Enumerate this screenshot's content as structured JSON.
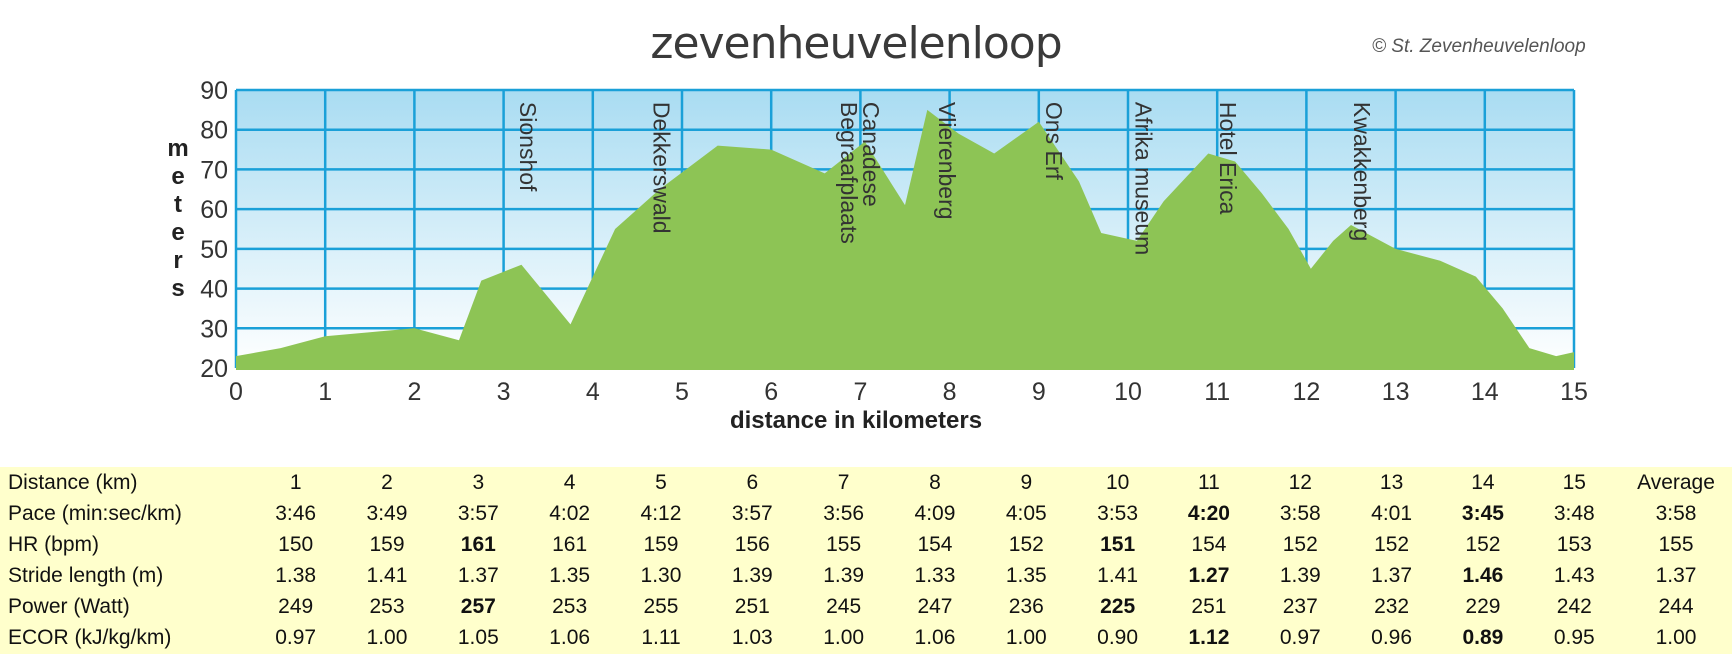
{
  "header": {
    "title": "zevenheuvelenloop",
    "copyright": "© St. Zevenheuvelenloop"
  },
  "chart_data": {
    "type": "area",
    "xlabel": "distance in kilometers",
    "ylabel": "meters",
    "xlim": [
      0,
      15
    ],
    "ylim": [
      20,
      90
    ],
    "x_ticks": [
      0,
      1,
      2,
      3,
      4,
      5,
      6,
      7,
      8,
      9,
      10,
      11,
      12,
      13,
      14,
      15
    ],
    "y_ticks": [
      20,
      30,
      40,
      50,
      60,
      70,
      80,
      90
    ],
    "grid": true,
    "fill_color": "#8dc455",
    "grid_color": "#1aa0d8",
    "profile": {
      "x": [
        0,
        0.5,
        1,
        1.5,
        2,
        2.5,
        2.75,
        3.2,
        3.75,
        4.25,
        4.75,
        5.4,
        6,
        6.6,
        7.05,
        7.5,
        7.75,
        8.1,
        8.5,
        9,
        9.45,
        9.7,
        10.1,
        10.4,
        10.9,
        11.2,
        11.5,
        11.8,
        12.05,
        12.3,
        12.5,
        13,
        13.5,
        13.9,
        14.2,
        14.5,
        14.8,
        15
      ],
      "y": [
        23,
        25,
        28,
        29,
        30,
        27,
        42,
        46,
        31,
        55,
        65,
        76,
        75,
        69,
        77,
        61,
        85,
        79,
        74,
        82,
        67,
        54,
        52,
        62,
        74,
        72,
        64,
        55,
        45,
        52,
        56,
        50,
        47,
        43,
        35,
        25,
        23,
        24
      ]
    },
    "annotations": [
      {
        "label": "Sionshof",
        "x": 3.25,
        "y": 87
      },
      {
        "label": "Dekkerswald",
        "x": 4.75,
        "y": 87
      },
      {
        "label": "Canadese",
        "x": 7.1,
        "y": 87
      },
      {
        "label": "Begraafplaats",
        "x": 6.85,
        "y": 87
      },
      {
        "label": "Vlierenberg",
        "x": 7.95,
        "y": 87
      },
      {
        "label": "Ons Erf",
        "x": 9.15,
        "y": 87
      },
      {
        "label": "Afrika museum",
        "x": 10.15,
        "y": 87
      },
      {
        "label": "Hotel Erica",
        "x": 11.1,
        "y": 87
      },
      {
        "label": "Kwakkenberg",
        "x": 12.6,
        "y": 87
      }
    ]
  },
  "stats_table": {
    "header_label": "Distance (km)",
    "columns": [
      "1",
      "2",
      "3",
      "4",
      "5",
      "6",
      "7",
      "8",
      "9",
      "10",
      "11",
      "12",
      "13",
      "14",
      "15",
      "Average"
    ],
    "rows": [
      {
        "label": "Pace (min:sec/km)",
        "values": [
          "3:46",
          "3:49",
          "3:57",
          "4:02",
          "4:12",
          "3:57",
          "3:56",
          "4:09",
          "4:05",
          "3:53",
          "4:20",
          "3:58",
          "4:01",
          "3:45",
          "3:48",
          "3:58"
        ],
        "bold": [
          10,
          13
        ]
      },
      {
        "label": "HR (bpm)",
        "values": [
          "150",
          "159",
          "161",
          "161",
          "159",
          "156",
          "155",
          "154",
          "152",
          "151",
          "154",
          "152",
          "152",
          "152",
          "153",
          "155"
        ],
        "bold": [
          2,
          9
        ]
      },
      {
        "label": "Stride length (m)",
        "values": [
          "1.38",
          "1.41",
          "1.37",
          "1.35",
          "1.30",
          "1.39",
          "1.39",
          "1.33",
          "1.35",
          "1.41",
          "1.27",
          "1.39",
          "1.37",
          "1.46",
          "1.43",
          "1.37"
        ],
        "bold": [
          10,
          13
        ]
      },
      {
        "label": "Power (Watt)",
        "values": [
          "249",
          "253",
          "257",
          "253",
          "255",
          "251",
          "245",
          "247",
          "236",
          "225",
          "251",
          "237",
          "232",
          "229",
          "242",
          "244"
        ],
        "bold": [
          2,
          9
        ]
      },
      {
        "label": "ECOR (kJ/kg/km)",
        "values": [
          "0.97",
          "1.00",
          "1.05",
          "1.06",
          "1.11",
          "1.03",
          "1.00",
          "1.06",
          "1.00",
          "0.90",
          "1.12",
          "0.97",
          "0.96",
          "0.89",
          "0.95",
          "1.00"
        ],
        "bold": [
          10,
          13
        ]
      }
    ]
  }
}
